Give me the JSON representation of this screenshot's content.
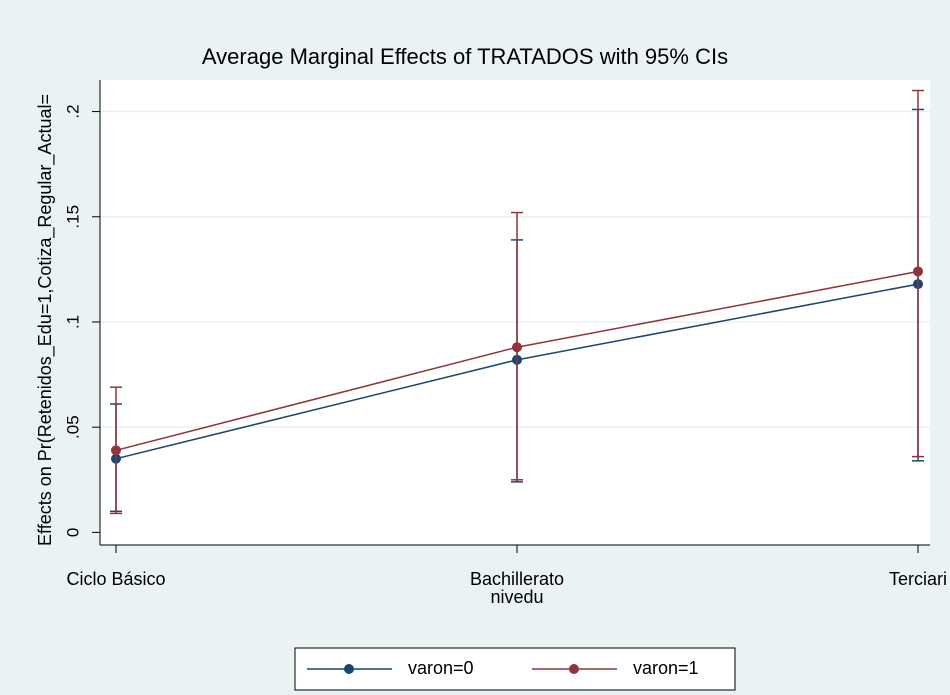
{
  "chart_data": {
    "type": "line",
    "title": "Average Marginal Effects of TRATADOS with 95% CIs",
    "y_label": "Effects on Pr(Retenidos_Edu=1,Cotiza_Regular_Actual=",
    "x_label": "nivedu",
    "categories": [
      "Ciclo Básico",
      "Bachillerato",
      "Terciari"
    ],
    "series": [
      {
        "name": "varon=0",
        "color": "#1a476f",
        "values": [
          0.035,
          0.082,
          0.118
        ],
        "ci_low": [
          0.01,
          0.024,
          0.034
        ],
        "ci_high": [
          0.061,
          0.139,
          0.201
        ]
      },
      {
        "name": "varon=1",
        "color": "#90353b",
        "values": [
          0.039,
          0.088,
          0.124
        ],
        "ci_low": [
          0.009,
          0.025,
          0.036
        ],
        "ci_high": [
          0.069,
          0.152,
          0.21
        ]
      }
    ],
    "ylim": [
      -0.006,
      0.215
    ],
    "yticks": [
      0,
      {
        "value": 0.05,
        "label": ".05"
      },
      {
        "value": 0.1,
        "label": ".1"
      },
      {
        "value": 0.15,
        "label": ".15"
      },
      {
        "value": 0.2,
        "label": ".2"
      }
    ],
    "grid": true,
    "legend": "bottom"
  }
}
